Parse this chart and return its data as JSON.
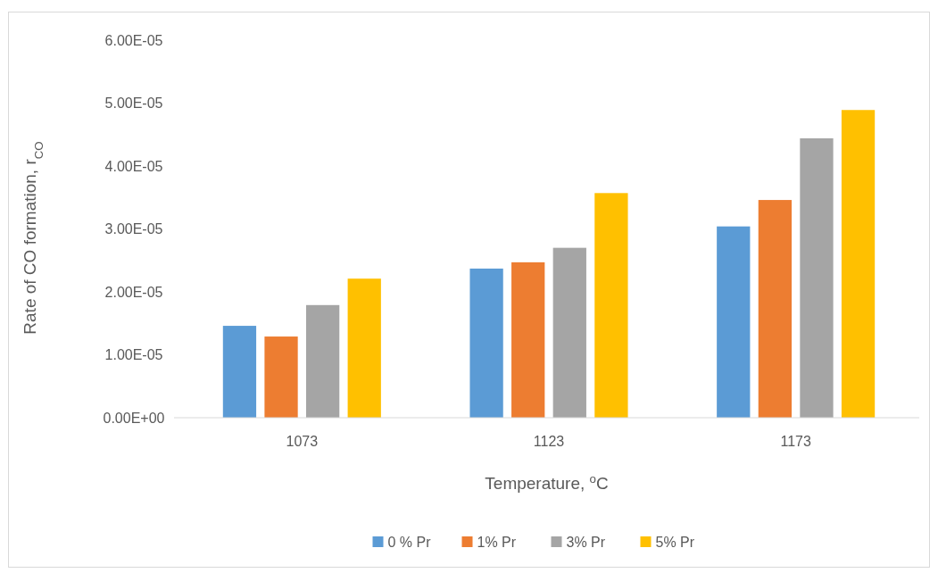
{
  "chart_data": {
    "type": "bar",
    "xlabel": "Temperature, $^{o}$C",
    "ylabel": "Rate of CO formation, r$_{CO}$",
    "categories": [
      "1073",
      "1123",
      "1173"
    ],
    "series": [
      {
        "name": "0 % Pr",
        "color": "#5b9bd5",
        "values": [
          1.46e-05,
          2.37e-05,
          3.04e-05
        ]
      },
      {
        "name": "1% Pr",
        "color": "#ed7d31",
        "values": [
          1.29e-05,
          2.47e-05,
          3.46e-05
        ]
      },
      {
        "name": "3% Pr",
        "color": "#a5a5a5",
        "values": [
          1.79e-05,
          2.7e-05,
          4.44e-05
        ]
      },
      {
        "name": "5% Pr",
        "color": "#ffc000",
        "values": [
          2.21e-05,
          3.57e-05,
          4.89e-05
        ]
      }
    ],
    "ylim": [
      0,
      6e-05
    ],
    "yticks": [
      {
        "value": 0,
        "label": "0.00E+00"
      },
      {
        "value": 1e-05,
        "label": "1.00E-05"
      },
      {
        "value": 2e-05,
        "label": "2.00E-05"
      },
      {
        "value": 3e-05,
        "label": "3.00E-05"
      },
      {
        "value": 4e-05,
        "label": "4.00E-05"
      },
      {
        "value": 5e-05,
        "label": "5.00E-05"
      },
      {
        "value": 6e-05,
        "label": "6.00E-05"
      }
    ],
    "grid": false,
    "legend": "bottom"
  }
}
